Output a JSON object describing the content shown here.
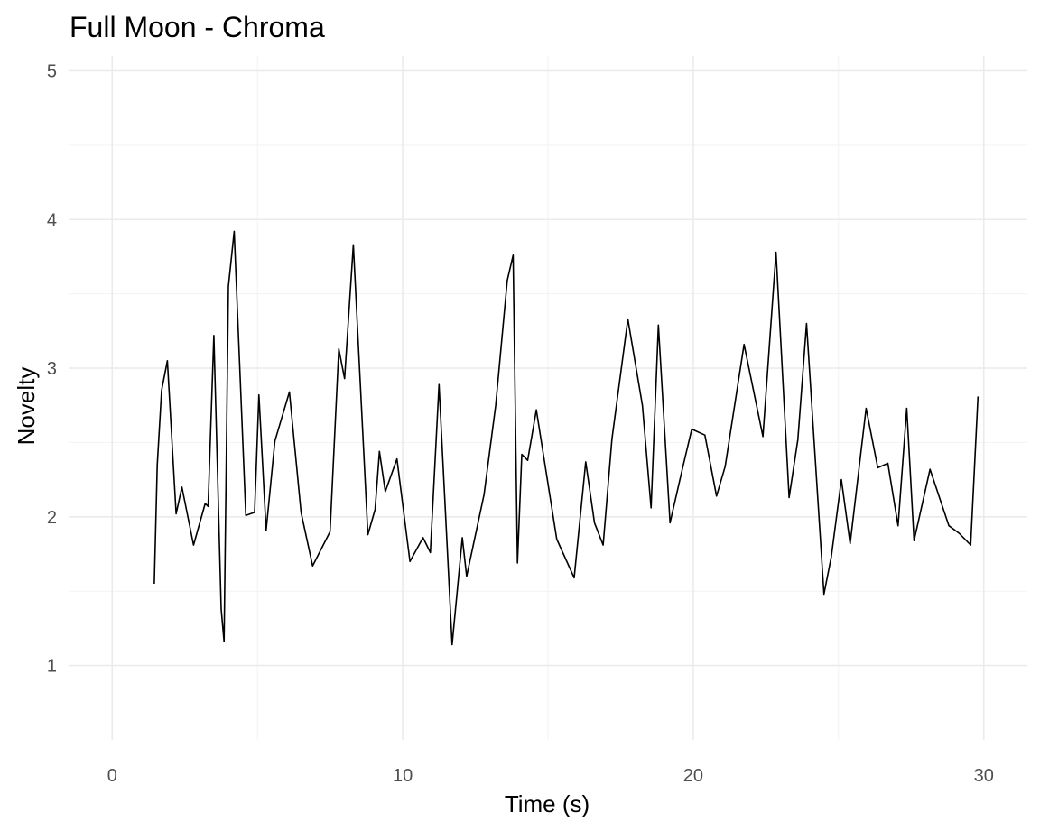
{
  "chart_data": {
    "type": "line",
    "title": "Full Moon - Chroma",
    "xlabel": "Time (s)",
    "ylabel": "Novelty",
    "xlim": [
      -1.5,
      31.5
    ],
    "ylim": [
      0.5,
      5.1
    ],
    "x_ticks": [
      0,
      10,
      20,
      30
    ],
    "y_ticks": [
      1,
      2,
      3,
      4,
      5
    ],
    "x_tick_labels": [
      "0",
      "10",
      "20",
      "30"
    ],
    "y_tick_labels": [
      "1",
      "2",
      "3",
      "4",
      "5"
    ],
    "grid": true,
    "line_color": "#000000",
    "series": [
      {
        "x": [
          1.45,
          1.55,
          1.7,
          1.9,
          2.2,
          2.4,
          2.8,
          3.2,
          3.3,
          3.5,
          3.75,
          3.85,
          4.0,
          4.2,
          4.6,
          4.9,
          5.05,
          5.3,
          5.6,
          6.1,
          6.5,
          6.9,
          7.5,
          7.8,
          8.0,
          8.3,
          8.8,
          9.05,
          9.2,
          9.4,
          9.8,
          10.25,
          10.7,
          10.95,
          11.25,
          11.7,
          12.05,
          12.2,
          12.8,
          13.2,
          13.6,
          13.8,
          13.95,
          14.1,
          14.3,
          14.6,
          15.3,
          15.9,
          16.3,
          16.6,
          16.9,
          17.2,
          17.75,
          18.25,
          18.55,
          18.8,
          19.2,
          19.6,
          19.95,
          20.4,
          20.8,
          21.1,
          21.75,
          22.4,
          22.85,
          23.3,
          23.6,
          23.9,
          24.5,
          24.75,
          25.1,
          25.4,
          25.95,
          26.35,
          26.7,
          27.05,
          27.35,
          27.6,
          28.15,
          28.8,
          29.15,
          29.55,
          29.8
        ],
        "y": [
          1.55,
          2.35,
          2.85,
          3.05,
          2.02,
          2.2,
          1.81,
          2.09,
          2.07,
          3.22,
          1.38,
          1.16,
          3.55,
          3.92,
          2.01,
          2.03,
          2.82,
          1.91,
          2.51,
          2.84,
          2.03,
          1.67,
          1.9,
          3.13,
          2.93,
          3.83,
          1.88,
          2.05,
          2.44,
          2.17,
          2.39,
          1.7,
          1.86,
          1.76,
          2.89,
          1.14,
          1.86,
          1.6,
          2.15,
          2.75,
          3.59,
          3.76,
          1.69,
          2.42,
          2.38,
          2.72,
          1.85,
          1.59,
          2.37,
          1.96,
          1.81,
          2.52,
          3.33,
          2.75,
          2.06,
          3.29,
          1.96,
          2.3,
          2.59,
          2.55,
          2.14,
          2.34,
          3.16,
          2.54,
          3.78,
          2.13,
          2.52,
          3.3,
          1.48,
          1.73,
          2.25,
          1.82,
          2.73,
          2.33,
          2.36,
          1.94,
          2.73,
          1.84,
          2.32,
          1.94,
          1.89,
          1.81,
          2.81
        ]
      }
    ]
  }
}
